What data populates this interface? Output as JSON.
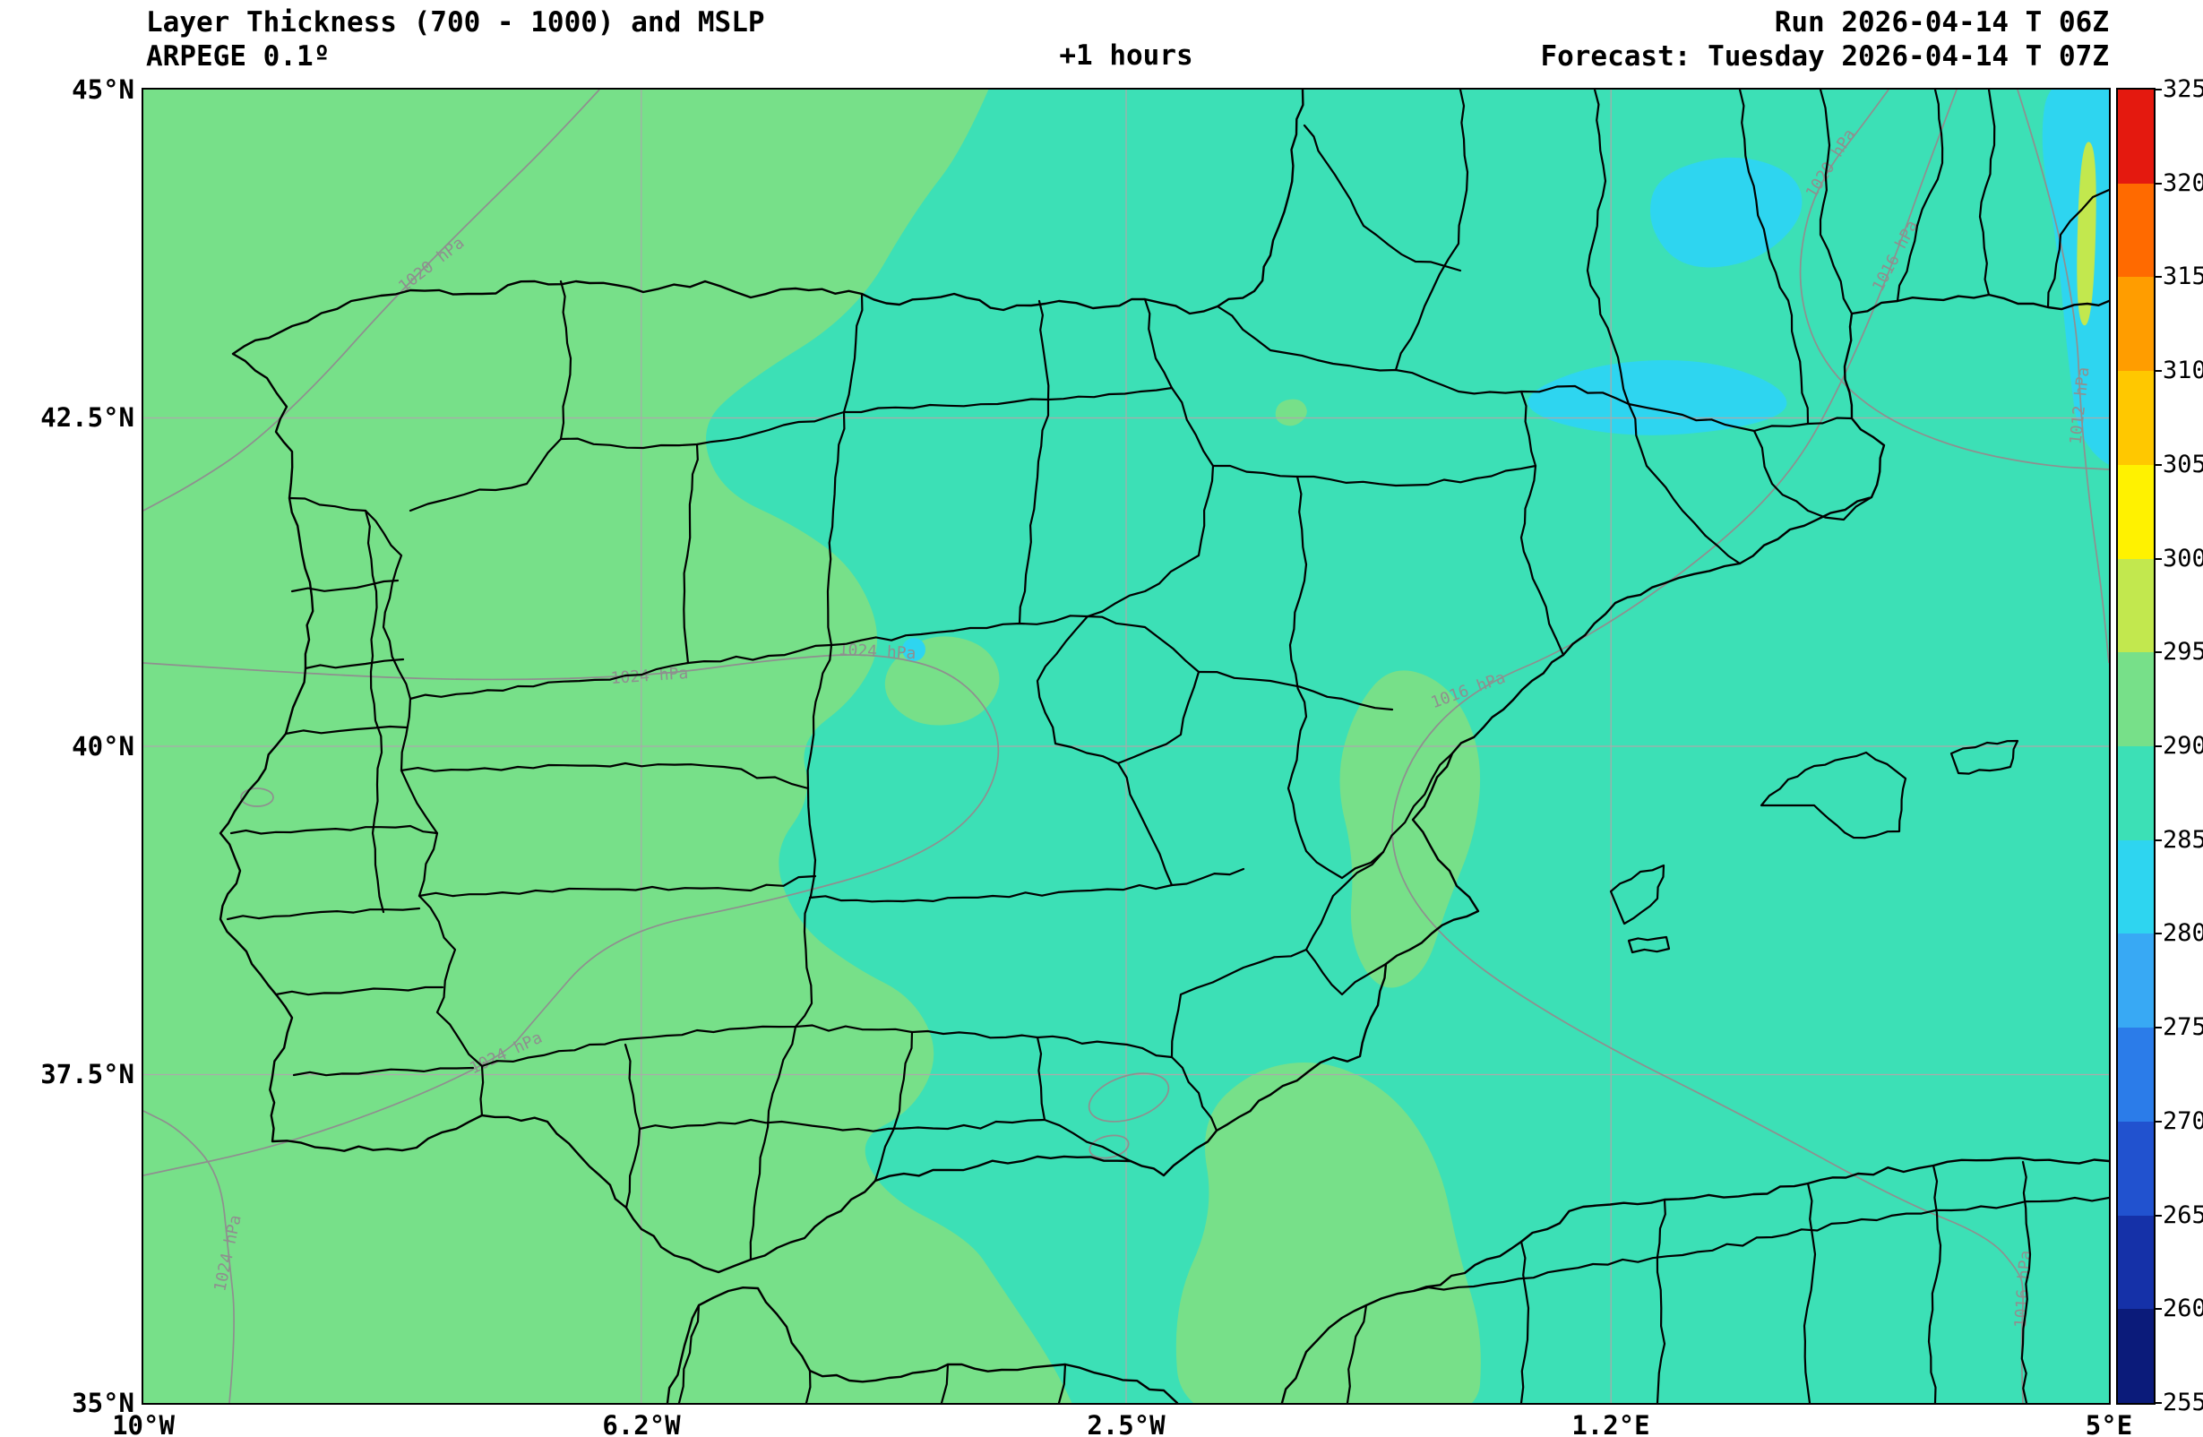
{
  "header": {
    "title_line1": "Layer Thickness (700 - 1000) and MSLP",
    "model_line": "ARPEGE 0.1º",
    "hour_label": "+1 hours",
    "run_info": "Run 2026-04-14 T 06Z",
    "forecast_info": "Forecast: Tuesday 2026-04-14 T 07Z"
  },
  "axes": {
    "y_ticks": [
      "45°N",
      "42.5°N",
      "40°N",
      "37.5°N",
      "35°N"
    ],
    "x_ticks": [
      "10°W",
      "6.2°W",
      "2.5°W",
      "1.2°E",
      "5°E"
    ]
  },
  "colorbar": {
    "tick_labels": [
      "325",
      "320",
      "315",
      "310",
      "305",
      "300",
      "295",
      "290",
      "285",
      "280",
      "275",
      "270",
      "265",
      "260",
      "255"
    ],
    "segment_colors_top_to_bottom": [
      "#e4190f",
      "#ff6a00",
      "#ff9d00",
      "#ffc800",
      "#fff200",
      "#c2e84e",
      "#77e089",
      "#3ce0b6",
      "#2ed5f0",
      "#38a9f4",
      "#2b7ce9",
      "#2152cf",
      "#1531a8",
      "#0b1b7a"
    ]
  },
  "palette": {
    "thickness_295_300": "#c2e84e",
    "thickness_290_295": "#77e089",
    "thickness_285_290": "#3ce0b6",
    "thickness_280_285": "#2ed5f0",
    "isobar_line": "#8f8f8f",
    "boundary_line": "#000000",
    "grid_line": "#aaaaaa"
  },
  "isobars": [
    {
      "text": "1020 hPa"
    },
    {
      "text": "1020 hPa"
    },
    {
      "text": "1016 hPa"
    },
    {
      "text": "1012 hPa"
    },
    {
      "text": "1024 hPa"
    },
    {
      "text": "1024 hPa"
    },
    {
      "text": "1016 hPa"
    },
    {
      "text": "1024 hPa"
    },
    {
      "text": "1024 hPa"
    },
    {
      "text": "1016 hPa"
    }
  ],
  "chart_data": {
    "type": "heatmap",
    "title": "Layer Thickness (700 - 1000) and MSLP",
    "subtitle": "ARPEGE 0.1º",
    "forecast_step": "+1 hours",
    "run": "2026-04-14 06Z",
    "valid": "Tuesday 2026-04-14 07Z",
    "map_extent": {
      "lon_min_deg": -10,
      "lon_max_deg": 5,
      "lat_min_deg": 35,
      "lat_max_deg": 45
    },
    "colorbar_range": [
      255,
      325
    ],
    "colorbar_step": 5,
    "isobar_values_hpa": [
      1012,
      1016,
      1020,
      1024
    ],
    "dominant_levels": {
      "west_iberia": "290-295",
      "east_iberia_and_mediterranean": "285-290",
      "northeast_patches": "280-285"
    }
  }
}
